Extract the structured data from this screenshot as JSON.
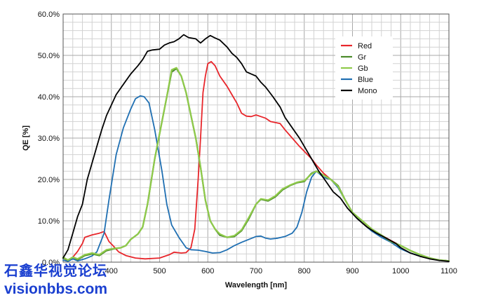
{
  "chart_data": {
    "type": "line",
    "title": "",
    "xlabel": "Wavelength [nm]",
    "ylabel": "QE [%]",
    "xlim": [
      300,
      1100
    ],
    "ylim": [
      0,
      60
    ],
    "x_ticks": [
      400,
      500,
      600,
      700,
      800,
      900,
      1000,
      1100
    ],
    "y_ticks": [
      "0.0%",
      "10.0%",
      "20.0%",
      "30.0%",
      "40.0%",
      "50.0%",
      "60.0%"
    ],
    "y_tick_values": [
      0,
      10,
      20,
      30,
      40,
      50,
      60
    ],
    "grid": true,
    "legend_position": "top-right",
    "series": [
      {
        "name": "Red",
        "color": "#e8262b",
        "points": [
          [
            300,
            1
          ],
          [
            310,
            0.3
          ],
          [
            320,
            1.2
          ],
          [
            330,
            2.6
          ],
          [
            340,
            4.5
          ],
          [
            345,
            6.0
          ],
          [
            360,
            6.6
          ],
          [
            375,
            7.0
          ],
          [
            385,
            7.4
          ],
          [
            395,
            5.0
          ],
          [
            405,
            3.8
          ],
          [
            415,
            2.5
          ],
          [
            430,
            1.6
          ],
          [
            450,
            1.0
          ],
          [
            470,
            0.8
          ],
          [
            500,
            1.0
          ],
          [
            520,
            1.8
          ],
          [
            530,
            2.4
          ],
          [
            545,
            2.2
          ],
          [
            555,
            2.3
          ],
          [
            565,
            3.5
          ],
          [
            573,
            8
          ],
          [
            580,
            20
          ],
          [
            585,
            30
          ],
          [
            590,
            41
          ],
          [
            595,
            45
          ],
          [
            600,
            48
          ],
          [
            607,
            48.5
          ],
          [
            615,
            47.5
          ],
          [
            625,
            45
          ],
          [
            640,
            42.5
          ],
          [
            650,
            40.5
          ],
          [
            660,
            38.5
          ],
          [
            670,
            36
          ],
          [
            680,
            35.3
          ],
          [
            690,
            35.2
          ],
          [
            700,
            35.6
          ],
          [
            710,
            35.2
          ],
          [
            720,
            34.8
          ],
          [
            730,
            34
          ],
          [
            750,
            33.5
          ],
          [
            760,
            32
          ],
          [
            775,
            30
          ],
          [
            790,
            28
          ],
          [
            800,
            26.8
          ],
          [
            815,
            25
          ],
          [
            825,
            23.5
          ],
          [
            840,
            21.5
          ],
          [
            855,
            20
          ],
          [
            870,
            18.5
          ],
          [
            885,
            15
          ],
          [
            900,
            12
          ],
          [
            920,
            9.5
          ],
          [
            940,
            7.8
          ],
          [
            960,
            6.5
          ],
          [
            980,
            5.2
          ],
          [
            1000,
            4
          ],
          [
            1020,
            2.8
          ],
          [
            1040,
            1.8
          ],
          [
            1060,
            1
          ],
          [
            1080,
            0.5
          ],
          [
            1100,
            0.3
          ]
        ]
      },
      {
        "name": "Gr",
        "color": "#4a8a2a",
        "points": [
          [
            300,
            1
          ],
          [
            310,
            0.5
          ],
          [
            320,
            1.2
          ],
          [
            330,
            0.6
          ],
          [
            345,
            1.6
          ],
          [
            360,
            2.0
          ],
          [
            375,
            1.6
          ],
          [
            390,
            2.8
          ],
          [
            405,
            3.2
          ],
          [
            420,
            3.5
          ],
          [
            430,
            4.0
          ],
          [
            440,
            5.5
          ],
          [
            455,
            6.8
          ],
          [
            465,
            8.5
          ],
          [
            475,
            14
          ],
          [
            490,
            25
          ],
          [
            505,
            34
          ],
          [
            515,
            40
          ],
          [
            525,
            46
          ],
          [
            535,
            46.8
          ],
          [
            545,
            45
          ],
          [
            555,
            41
          ],
          [
            565,
            35.5
          ],
          [
            575,
            30
          ],
          [
            585,
            23
          ],
          [
            595,
            15
          ],
          [
            605,
            10
          ],
          [
            615,
            8
          ],
          [
            625,
            6.5
          ],
          [
            640,
            6
          ],
          [
            655,
            6.2
          ],
          [
            670,
            7.6
          ],
          [
            685,
            10.5
          ],
          [
            700,
            14
          ],
          [
            710,
            15.2
          ],
          [
            725,
            14.8
          ],
          [
            740,
            15.8
          ],
          [
            755,
            17.5
          ],
          [
            770,
            18.5
          ],
          [
            785,
            19.2
          ],
          [
            800,
            19.5
          ],
          [
            815,
            21.5
          ],
          [
            825,
            22
          ],
          [
            840,
            21
          ],
          [
            855,
            20
          ],
          [
            870,
            18.5
          ],
          [
            885,
            15
          ],
          [
            900,
            12
          ],
          [
            920,
            10
          ],
          [
            940,
            8
          ],
          [
            960,
            6.5
          ],
          [
            980,
            5
          ],
          [
            1000,
            4
          ],
          [
            1020,
            2.8
          ],
          [
            1040,
            1.8
          ],
          [
            1060,
            1
          ],
          [
            1080,
            0.5
          ],
          [
            1100,
            0.3
          ]
        ]
      },
      {
        "name": "Gb",
        "color": "#8fca4a",
        "points": [
          [
            300,
            1.2
          ],
          [
            310,
            0.5
          ],
          [
            320,
            1.2
          ],
          [
            330,
            0.8
          ],
          [
            345,
            1.8
          ],
          [
            360,
            2.2
          ],
          [
            375,
            1.8
          ],
          [
            390,
            3.0
          ],
          [
            405,
            3.3
          ],
          [
            420,
            3.5
          ],
          [
            430,
            4.0
          ],
          [
            440,
            5.5
          ],
          [
            455,
            6.8
          ],
          [
            465,
            8.5
          ],
          [
            475,
            14
          ],
          [
            490,
            25
          ],
          [
            505,
            34
          ],
          [
            515,
            40
          ],
          [
            525,
            46.5
          ],
          [
            535,
            47
          ],
          [
            545,
            45
          ],
          [
            555,
            41
          ],
          [
            565,
            35.5
          ],
          [
            575,
            30
          ],
          [
            585,
            23
          ],
          [
            595,
            15
          ],
          [
            605,
            10
          ],
          [
            615,
            8
          ],
          [
            625,
            6.8
          ],
          [
            640,
            6
          ],
          [
            655,
            6.4
          ],
          [
            670,
            7.8
          ],
          [
            685,
            10.8
          ],
          [
            700,
            14
          ],
          [
            710,
            15.3
          ],
          [
            725,
            15
          ],
          [
            740,
            16
          ],
          [
            755,
            17.7
          ],
          [
            770,
            18.6
          ],
          [
            785,
            19.3
          ],
          [
            800,
            19.7
          ],
          [
            815,
            21.3
          ],
          [
            825,
            22
          ],
          [
            840,
            21
          ],
          [
            855,
            20
          ],
          [
            870,
            18.3
          ],
          [
            885,
            15
          ],
          [
            900,
            12
          ],
          [
            920,
            10
          ],
          [
            940,
            8
          ],
          [
            960,
            6.5
          ],
          [
            980,
            5
          ],
          [
            1000,
            4
          ],
          [
            1020,
            2.8
          ],
          [
            1040,
            1.8
          ],
          [
            1060,
            1
          ],
          [
            1080,
            0.5
          ],
          [
            1100,
            0.3
          ]
        ]
      },
      {
        "name": "Blue",
        "color": "#1f6fb2",
        "points": [
          [
            300,
            0.5
          ],
          [
            310,
            0.2
          ],
          [
            320,
            0.8
          ],
          [
            330,
            0.3
          ],
          [
            345,
            0.8
          ],
          [
            360,
            1.5
          ],
          [
            370,
            2.5
          ],
          [
            385,
            7
          ],
          [
            395,
            15
          ],
          [
            410,
            26
          ],
          [
            425,
            32.5
          ],
          [
            440,
            37
          ],
          [
            450,
            39.5
          ],
          [
            460,
            40.2
          ],
          [
            468,
            40
          ],
          [
            478,
            38.5
          ],
          [
            490,
            32
          ],
          [
            505,
            22
          ],
          [
            515,
            14
          ],
          [
            525,
            9
          ],
          [
            540,
            6
          ],
          [
            555,
            3.5
          ],
          [
            565,
            3
          ],
          [
            580,
            2.9
          ],
          [
            595,
            2.6
          ],
          [
            610,
            2.2
          ],
          [
            625,
            2.3
          ],
          [
            640,
            3.0
          ],
          [
            655,
            4.0
          ],
          [
            670,
            4.8
          ],
          [
            685,
            5.5
          ],
          [
            700,
            6.2
          ],
          [
            710,
            6.3
          ],
          [
            720,
            5.8
          ],
          [
            730,
            5.6
          ],
          [
            745,
            5.8
          ],
          [
            760,
            6.2
          ],
          [
            775,
            7.0
          ],
          [
            785,
            8.5
          ],
          [
            795,
            12
          ],
          [
            805,
            17
          ],
          [
            815,
            20.5
          ],
          [
            825,
            22
          ],
          [
            840,
            20.5
          ],
          [
            855,
            20
          ],
          [
            870,
            18
          ],
          [
            885,
            15
          ],
          [
            900,
            12
          ],
          [
            920,
            9.5
          ],
          [
            940,
            7.5
          ],
          [
            960,
            6
          ],
          [
            980,
            4.8
          ],
          [
            1000,
            3.2
          ],
          [
            1020,
            2.2
          ],
          [
            1040,
            1.5
          ],
          [
            1060,
            0.9
          ],
          [
            1080,
            0.5
          ],
          [
            1100,
            0.3
          ]
        ]
      },
      {
        "name": "Mono",
        "color": "#000000",
        "points": [
          [
            300,
            1
          ],
          [
            310,
            3
          ],
          [
            320,
            7
          ],
          [
            330,
            11
          ],
          [
            340,
            14
          ],
          [
            350,
            20
          ],
          [
            360,
            24
          ],
          [
            370,
            28
          ],
          [
            380,
            32
          ],
          [
            390,
            35.5
          ],
          [
            400,
            38
          ],
          [
            410,
            40.5
          ],
          [
            425,
            43
          ],
          [
            440,
            45.5
          ],
          [
            455,
            47.5
          ],
          [
            465,
            49
          ],
          [
            475,
            51
          ],
          [
            485,
            51.3
          ],
          [
            500,
            51.5
          ],
          [
            510,
            52.5
          ],
          [
            520,
            53
          ],
          [
            530,
            53.3
          ],
          [
            540,
            54
          ],
          [
            550,
            55
          ],
          [
            560,
            54.3
          ],
          [
            575,
            54
          ],
          [
            585,
            53
          ],
          [
            595,
            54
          ],
          [
            605,
            54.8
          ],
          [
            615,
            54.2
          ],
          [
            625,
            53.7
          ],
          [
            640,
            52
          ],
          [
            650,
            50.5
          ],
          [
            660,
            49.5
          ],
          [
            670,
            48
          ],
          [
            680,
            46
          ],
          [
            690,
            45.5
          ],
          [
            700,
            45
          ],
          [
            710,
            43.5
          ],
          [
            720,
            42.3
          ],
          [
            735,
            40
          ],
          [
            750,
            37.5
          ],
          [
            760,
            35
          ],
          [
            775,
            32.5
          ],
          [
            790,
            30
          ],
          [
            800,
            28
          ],
          [
            815,
            25
          ],
          [
            830,
            22
          ],
          [
            845,
            19.5
          ],
          [
            860,
            17
          ],
          [
            875,
            15.5
          ],
          [
            890,
            13
          ],
          [
            910,
            10.5
          ],
          [
            930,
            8.5
          ],
          [
            950,
            7
          ],
          [
            970,
            5.8
          ],
          [
            990,
            4.5
          ],
          [
            1000,
            3.5
          ],
          [
            1020,
            2.2
          ],
          [
            1040,
            1.4
          ],
          [
            1060,
            0.8
          ],
          [
            1080,
            0.4
          ],
          [
            1100,
            0.2
          ]
        ]
      }
    ]
  },
  "watermark": {
    "line1": "石鑫华视觉论坛",
    "line2": "visionbbs.com"
  }
}
